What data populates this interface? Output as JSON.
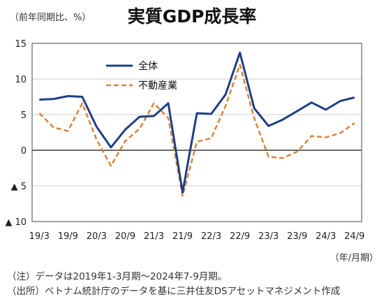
{
  "unit_label": "（前年同期比、%）",
  "x_unit_label": "（年/月期）",
  "notes": [
    "（注）データは2019年1-3月期～2024年7-9月期。",
    "（出所）ベトナム統計庁のデータを基に三井住友DSアセットマネジメント作成"
  ],
  "chart_data": {
    "type": "line",
    "title": "実質GDP成長率",
    "ylim": [
      -10,
      15
    ],
    "yticks": [
      15,
      10,
      5,
      0,
      -5,
      -10
    ],
    "ytick_labels": [
      "15",
      "10",
      "5",
      "0",
      "▲ 5",
      "▲ 10"
    ],
    "categories": [
      "19/3",
      "19/6",
      "19/9",
      "19/12",
      "20/3",
      "20/6",
      "20/9",
      "20/12",
      "21/3",
      "21/6",
      "21/9",
      "21/12",
      "22/3",
      "22/6",
      "22/9",
      "22/12",
      "23/3",
      "23/6",
      "23/9",
      "23/12",
      "24/3",
      "24/6",
      "24/9"
    ],
    "xtick_labels": [
      "19/3",
      "19/9",
      "20/3",
      "20/9",
      "21/3",
      "21/9",
      "22/3",
      "22/9",
      "23/3",
      "23/9",
      "24/3",
      "24/9"
    ],
    "legend_position": "top-left",
    "series": [
      {
        "name": "全体",
        "color": "#1f3f86",
        "style": "solid",
        "values": [
          7.1,
          7.2,
          7.6,
          7.5,
          3.3,
          0.4,
          2.9,
          4.7,
          4.8,
          6.6,
          -5.9,
          5.2,
          5.1,
          7.8,
          13.7,
          5.9,
          3.4,
          4.3,
          5.5,
          6.7,
          5.7,
          6.9,
          7.4
        ]
      },
      {
        "name": "不動産業",
        "color": "#d9833b",
        "style": "dashed",
        "values": [
          5.2,
          3.2,
          2.7,
          6.6,
          1.5,
          -2.2,
          1.3,
          3.0,
          6.6,
          4.5,
          -6.4,
          1.2,
          1.7,
          6.2,
          12.0,
          4.5,
          -0.9,
          -1.1,
          -0.2,
          2.0,
          1.8,
          2.4,
          3.8
        ]
      }
    ]
  }
}
